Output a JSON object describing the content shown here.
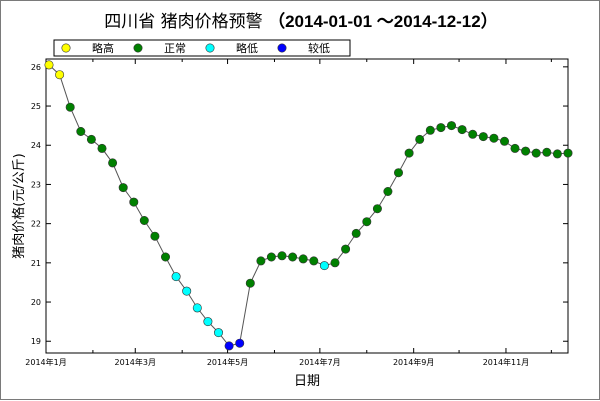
{
  "title": {
    "prefix": "四川省 猪肉价格预警 ",
    "range": "（2014-01-01 ～2014-12-12）"
  },
  "colors": {
    "slightly_high": "#ffff00",
    "normal": "#008000",
    "slightly_low": "#00ffff",
    "relatively_low": "#0000ff",
    "line": "#555555"
  },
  "chart_data": {
    "type": "line",
    "title": "四川省 猪肉价格预警 （2014-01-01 ～2014-12-12）",
    "xlabel": "日期",
    "ylabel": "猪肉价格(元/公斤)",
    "x_ticks": [
      "2014年1月",
      "2014年3月",
      "2014年5月",
      "2014年7月",
      "2014年9月",
      "2014年11月"
    ],
    "y_ticks": [
      19,
      20,
      21,
      22,
      23,
      24,
      25,
      26
    ],
    "ylim": [
      18.7,
      26.2
    ],
    "xlim": [
      "2014-01-01",
      "2014-12-12"
    ],
    "grid": false,
    "legend_position": "top-left",
    "legend": [
      {
        "label": "略高",
        "level": "slightly_high"
      },
      {
        "label": "正常",
        "level": "normal"
      },
      {
        "label": "略低",
        "level": "slightly_low"
      },
      {
        "label": "较低",
        "level": "relatively_low"
      }
    ],
    "series": [
      {
        "x": [
          "2014-01-03",
          "2014-01-10",
          "2014-01-17",
          "2014-01-24",
          "2014-01-31",
          "2014-02-07",
          "2014-02-14",
          "2014-02-21",
          "2014-02-28",
          "2014-03-07",
          "2014-03-14",
          "2014-03-21",
          "2014-03-28",
          "2014-04-04",
          "2014-04-11",
          "2014-04-18",
          "2014-04-25",
          "2014-05-02",
          "2014-05-09",
          "2014-05-16",
          "2014-05-23",
          "2014-05-30",
          "2014-06-06",
          "2014-06-13",
          "2014-06-20",
          "2014-06-27",
          "2014-07-04",
          "2014-07-11",
          "2014-07-18",
          "2014-07-25",
          "2014-08-01",
          "2014-08-08",
          "2014-08-15",
          "2014-08-22",
          "2014-08-29",
          "2014-09-05",
          "2014-09-12",
          "2014-09-19",
          "2014-09-26",
          "2014-10-03",
          "2014-10-10",
          "2014-10-17",
          "2014-10-24",
          "2014-10-31",
          "2014-11-07",
          "2014-11-14",
          "2014-11-21",
          "2014-11-28",
          "2014-12-05",
          "2014-12-12"
        ],
        "values": [
          26.05,
          25.8,
          24.97,
          24.35,
          24.15,
          23.92,
          23.55,
          22.92,
          22.55,
          22.08,
          21.68,
          21.15,
          20.65,
          20.28,
          19.85,
          19.5,
          19.22,
          18.88,
          18.95,
          20.48,
          21.05,
          21.15,
          21.18,
          21.15,
          21.1,
          21.05,
          20.93,
          21.0,
          21.35,
          21.75,
          22.05,
          22.38,
          22.82,
          23.3,
          23.8,
          24.15,
          24.38,
          24.45,
          24.5,
          24.4,
          24.28,
          24.22,
          24.18,
          24.1,
          23.92,
          23.85,
          23.8,
          23.82,
          23.78,
          23.8
        ],
        "levels": [
          "slightly_high",
          "slightly_high",
          "normal",
          "normal",
          "normal",
          "normal",
          "normal",
          "normal",
          "normal",
          "normal",
          "normal",
          "normal",
          "slightly_low",
          "slightly_low",
          "slightly_low",
          "slightly_low",
          "slightly_low",
          "relatively_low",
          "relatively_low",
          "normal",
          "normal",
          "normal",
          "normal",
          "normal",
          "normal",
          "normal",
          "slightly_low",
          "normal",
          "normal",
          "normal",
          "normal",
          "normal",
          "normal",
          "normal",
          "normal",
          "normal",
          "normal",
          "normal",
          "normal",
          "normal",
          "normal",
          "normal",
          "normal",
          "normal",
          "normal",
          "normal",
          "normal",
          "normal",
          "normal",
          "normal"
        ]
      }
    ]
  }
}
